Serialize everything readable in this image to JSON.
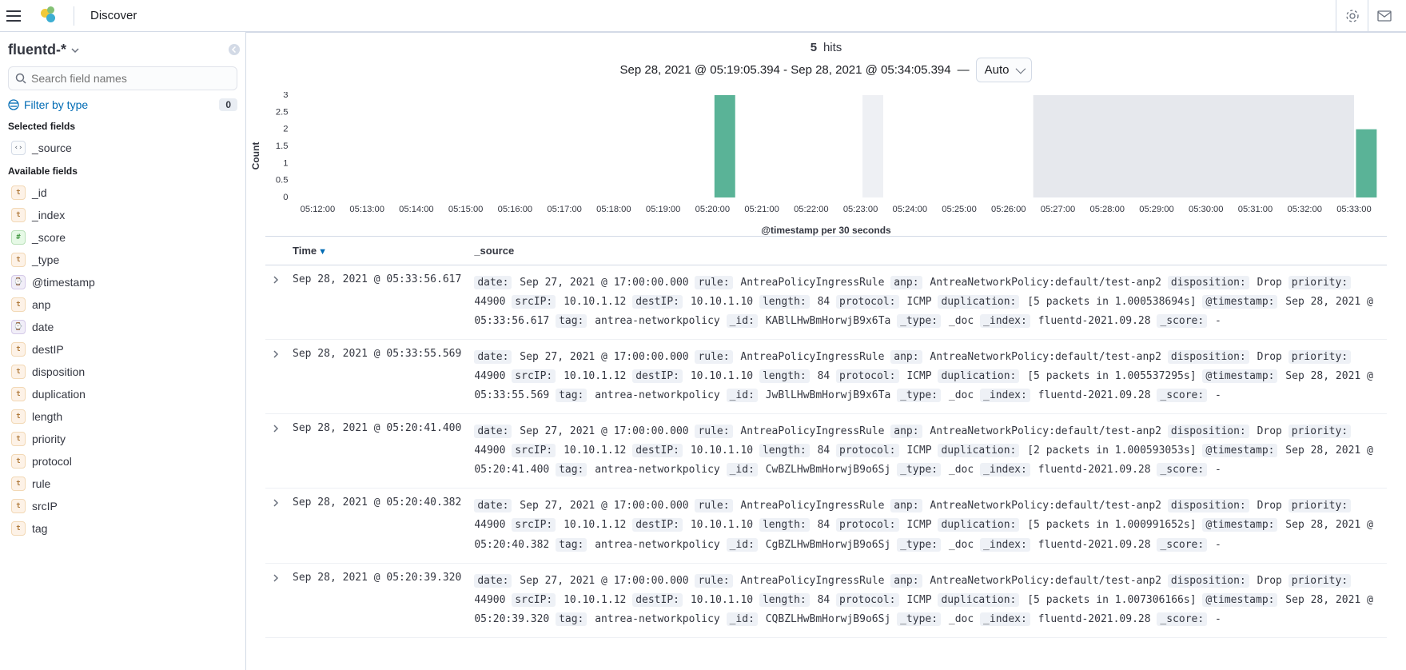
{
  "app_title": "Discover",
  "sidebar": {
    "index_pattern": "fluentd-*",
    "search_placeholder": "Search field names",
    "filter_by_type": "Filter by type",
    "filter_count": "0",
    "selected_label": "Selected fields",
    "available_label": "Available fields",
    "selected_fields": [
      {
        "name": "_source",
        "type": "src"
      }
    ],
    "available_fields": [
      {
        "name": "_id",
        "type": "t"
      },
      {
        "name": "_index",
        "type": "t"
      },
      {
        "name": "_score",
        "type": "n"
      },
      {
        "name": "_type",
        "type": "t"
      },
      {
        "name": "@timestamp",
        "type": "d"
      },
      {
        "name": "anp",
        "type": "t"
      },
      {
        "name": "date",
        "type": "d"
      },
      {
        "name": "destIP",
        "type": "t"
      },
      {
        "name": "disposition",
        "type": "t"
      },
      {
        "name": "duplication",
        "type": "t"
      },
      {
        "name": "length",
        "type": "t"
      },
      {
        "name": "priority",
        "type": "t"
      },
      {
        "name": "protocol",
        "type": "t"
      },
      {
        "name": "rule",
        "type": "t"
      },
      {
        "name": "srcIP",
        "type": "t"
      },
      {
        "name": "tag",
        "type": "t"
      }
    ]
  },
  "hits": {
    "count": "5",
    "label": "hits"
  },
  "timerange": {
    "text": "Sep 28, 2021 @ 05:19:05.394 - Sep 28, 2021 @ 05:34:05.394",
    "dash": "—",
    "interval": "Auto"
  },
  "chart": {
    "type": "bar",
    "y_label": "Count",
    "x_label": "@timestamp per 30 seconds",
    "y_ticks": [
      0,
      0.5,
      1,
      1.5,
      2,
      2.5,
      3
    ],
    "ylim": [
      0,
      3
    ],
    "x_ticks": [
      "05:12:00",
      "05:13:00",
      "05:14:00",
      "05:15:00",
      "05:16:00",
      "05:17:00",
      "05:18:00",
      "05:19:00",
      "05:20:00",
      "05:21:00",
      "05:22:00",
      "05:23:00",
      "05:24:00",
      "05:25:00",
      "05:26:00",
      "05:27:00",
      "05:28:00",
      "05:29:00",
      "05:30:00",
      "05:31:00",
      "05:32:00",
      "05:33:00"
    ],
    "bars": [
      {
        "x_index": 8,
        "slot_in_minute": 1,
        "value": 3,
        "color": "#5ab397"
      },
      {
        "x_index": 11,
        "slot_in_minute": 1,
        "value": 3,
        "color": "#eef0f4"
      },
      {
        "x_index": 21,
        "slot_in_minute": 1,
        "value": 2,
        "color": "#5ab397"
      }
    ],
    "selection": {
      "from_index": 15,
      "to_index": 21,
      "slot": 0,
      "color": "#e6e8ed"
    },
    "plot_bg": "#ffffff",
    "axis_color": "#343741",
    "tick_fontsize": 11,
    "label_fontsize": 12
  },
  "columns": {
    "time": "Time",
    "source": "_source"
  },
  "rows": [
    {
      "time": "Sep 28, 2021 @ 05:33:56.617",
      "fields": [
        {
          "k": "date",
          "v": "Sep 27, 2021 @ 17:00:00.000"
        },
        {
          "k": "rule",
          "v": "AntreaPolicyIngressRule"
        },
        {
          "k": "anp",
          "v": "AntreaNetworkPolicy:default/test-anp2"
        },
        {
          "k": "disposition",
          "v": "Drop"
        },
        {
          "k": "priority",
          "v": "44900"
        },
        {
          "k": "srcIP",
          "v": "10.10.1.12"
        },
        {
          "k": "destIP",
          "v": "10.10.1.10"
        },
        {
          "k": "length",
          "v": "84"
        },
        {
          "k": "protocol",
          "v": "ICMP"
        },
        {
          "k": "duplication",
          "v": "[5 packets in 1.000538694s]"
        },
        {
          "k": "@timestamp",
          "v": "Sep 28, 2021 @ 05:33:56.617"
        },
        {
          "k": "tag",
          "v": "antrea-networkpolicy"
        },
        {
          "k": "_id",
          "v": "KABlLHwBmHorwjB9x6Ta"
        },
        {
          "k": "_type",
          "v": "_doc"
        },
        {
          "k": "_index",
          "v": "fluentd-2021.09.28"
        },
        {
          "k": "_score",
          "v": "-"
        }
      ]
    },
    {
      "time": "Sep 28, 2021 @ 05:33:55.569",
      "fields": [
        {
          "k": "date",
          "v": "Sep 27, 2021 @ 17:00:00.000"
        },
        {
          "k": "rule",
          "v": "AntreaPolicyIngressRule"
        },
        {
          "k": "anp",
          "v": "AntreaNetworkPolicy:default/test-anp2"
        },
        {
          "k": "disposition",
          "v": "Drop"
        },
        {
          "k": "priority",
          "v": "44900"
        },
        {
          "k": "srcIP",
          "v": "10.10.1.12"
        },
        {
          "k": "destIP",
          "v": "10.10.1.10"
        },
        {
          "k": "length",
          "v": "84"
        },
        {
          "k": "protocol",
          "v": "ICMP"
        },
        {
          "k": "duplication",
          "v": "[5 packets in 1.005537295s]"
        },
        {
          "k": "@timestamp",
          "v": "Sep 28, 2021 @ 05:33:55.569"
        },
        {
          "k": "tag",
          "v": "antrea-networkpolicy"
        },
        {
          "k": "_id",
          "v": "JwBlLHwBmHorwjB9x6Ta"
        },
        {
          "k": "_type",
          "v": "_doc"
        },
        {
          "k": "_index",
          "v": "fluentd-2021.09.28"
        },
        {
          "k": "_score",
          "v": "-"
        }
      ]
    },
    {
      "time": "Sep 28, 2021 @ 05:20:41.400",
      "fields": [
        {
          "k": "date",
          "v": "Sep 27, 2021 @ 17:00:00.000"
        },
        {
          "k": "rule",
          "v": "AntreaPolicyIngressRule"
        },
        {
          "k": "anp",
          "v": "AntreaNetworkPolicy:default/test-anp2"
        },
        {
          "k": "disposition",
          "v": "Drop"
        },
        {
          "k": "priority",
          "v": "44900"
        },
        {
          "k": "srcIP",
          "v": "10.10.1.12"
        },
        {
          "k": "destIP",
          "v": "10.10.1.10"
        },
        {
          "k": "length",
          "v": "84"
        },
        {
          "k": "protocol",
          "v": "ICMP"
        },
        {
          "k": "duplication",
          "v": "[2 packets in 1.000593053s]"
        },
        {
          "k": "@timestamp",
          "v": "Sep 28, 2021 @ 05:20:41.400"
        },
        {
          "k": "tag",
          "v": "antrea-networkpolicy"
        },
        {
          "k": "_id",
          "v": "CwBZLHwBmHorwjB9o6Sj"
        },
        {
          "k": "_type",
          "v": "_doc"
        },
        {
          "k": "_index",
          "v": "fluentd-2021.09.28"
        },
        {
          "k": "_score",
          "v": "-"
        }
      ]
    },
    {
      "time": "Sep 28, 2021 @ 05:20:40.382",
      "fields": [
        {
          "k": "date",
          "v": "Sep 27, 2021 @ 17:00:00.000"
        },
        {
          "k": "rule",
          "v": "AntreaPolicyIngressRule"
        },
        {
          "k": "anp",
          "v": "AntreaNetworkPolicy:default/test-anp2"
        },
        {
          "k": "disposition",
          "v": "Drop"
        },
        {
          "k": "priority",
          "v": "44900"
        },
        {
          "k": "srcIP",
          "v": "10.10.1.12"
        },
        {
          "k": "destIP",
          "v": "10.10.1.10"
        },
        {
          "k": "length",
          "v": "84"
        },
        {
          "k": "protocol",
          "v": "ICMP"
        },
        {
          "k": "duplication",
          "v": "[5 packets in 1.000991652s]"
        },
        {
          "k": "@timestamp",
          "v": "Sep 28, 2021 @ 05:20:40.382"
        },
        {
          "k": "tag",
          "v": "antrea-networkpolicy"
        },
        {
          "k": "_id",
          "v": "CgBZLHwBmHorwjB9o6Sj"
        },
        {
          "k": "_type",
          "v": "_doc"
        },
        {
          "k": "_index",
          "v": "fluentd-2021.09.28"
        },
        {
          "k": "_score",
          "v": "-"
        }
      ]
    },
    {
      "time": "Sep 28, 2021 @ 05:20:39.320",
      "fields": [
        {
          "k": "date",
          "v": "Sep 27, 2021 @ 17:00:00.000"
        },
        {
          "k": "rule",
          "v": "AntreaPolicyIngressRule"
        },
        {
          "k": "anp",
          "v": "AntreaNetworkPolicy:default/test-anp2"
        },
        {
          "k": "disposition",
          "v": "Drop"
        },
        {
          "k": "priority",
          "v": "44900"
        },
        {
          "k": "srcIP",
          "v": "10.10.1.12"
        },
        {
          "k": "destIP",
          "v": "10.10.1.10"
        },
        {
          "k": "length",
          "v": "84"
        },
        {
          "k": "protocol",
          "v": "ICMP"
        },
        {
          "k": "duplication",
          "v": "[5 packets in 1.007306166s]"
        },
        {
          "k": "@timestamp",
          "v": "Sep 28, 2021 @ 05:20:39.320"
        },
        {
          "k": "tag",
          "v": "antrea-networkpolicy"
        },
        {
          "k": "_id",
          "v": "CQBZLHwBmHorwjB9o6Sj"
        },
        {
          "k": "_type",
          "v": "_doc"
        },
        {
          "k": "_index",
          "v": "fluentd-2021.09.28"
        },
        {
          "k": "_score",
          "v": "-"
        }
      ]
    }
  ]
}
